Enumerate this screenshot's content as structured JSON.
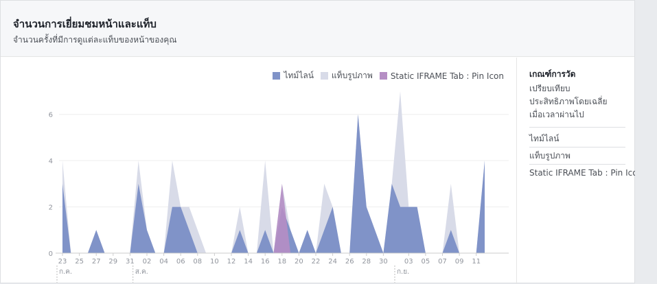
{
  "header": {
    "title": "จำนวนการเยี่ยมชมหน้าและแท็บ",
    "subtitle": "จำนวนครั้งที่มีการดูแต่ละแท็บของหน้าของคุณ"
  },
  "legend": [
    {
      "label": "ไทม์ไลน์",
      "color": "#8093c8"
    },
    {
      "label": "แท็บรูปภาพ",
      "color": "#d8dbe8"
    },
    {
      "label": "Static IFRAME Tab : Pin Icon",
      "color": "#b58ec4"
    }
  ],
  "side": {
    "title": "เกณฑ์การวัด",
    "desc_lines": [
      "เปรียบเทียบ",
      "ประสิทธิภาพโดยเฉลี่ย",
      "เมื่อเวลาผ่านไป"
    ],
    "options": [
      "ไทม์ไลน์",
      "แท็บรูปภาพ",
      "Static IFRAME Tab : Pin Icon"
    ]
  },
  "chart_data": {
    "type": "area",
    "ylim": [
      0,
      7
    ],
    "yticks": [
      0,
      2,
      4,
      6
    ],
    "x": [
      "23",
      "24",
      "25",
      "26",
      "27",
      "28",
      "29",
      "30",
      "31",
      "01",
      "02",
      "03",
      "04",
      "05",
      "06",
      "07",
      "08",
      "09",
      "10",
      "11",
      "12",
      "13",
      "14",
      "15",
      "16",
      "17",
      "18",
      "19",
      "20",
      "21",
      "22",
      "23b",
      "24b",
      "25b",
      "26b",
      "27b",
      "28b",
      "29b",
      "30b",
      "31b",
      "01b",
      "02b",
      "03b",
      "04b",
      "05b",
      "06b",
      "07b",
      "08b",
      "09b",
      "10b",
      "11b"
    ],
    "xtick_labels": [
      "23",
      "25",
      "27",
      "29",
      "31",
      "02",
      "04",
      "06",
      "08",
      "10",
      "12",
      "14",
      "16",
      "18",
      "20",
      "22",
      "24",
      "26",
      "28",
      "30",
      "03",
      "05",
      "07",
      "09",
      "11"
    ],
    "xtick_index": [
      0,
      2,
      4,
      6,
      8,
      10,
      12,
      14,
      16,
      18,
      20,
      22,
      24,
      26,
      28,
      30,
      32,
      34,
      36,
      38,
      41,
      43,
      45,
      47,
      49
    ],
    "month_labels": [
      {
        "label": "ก.ค.",
        "index": 0
      },
      {
        "label": "ส.ค.",
        "index": 9
      },
      {
        "label": "ก.ย.",
        "index": 40
      }
    ],
    "series": [
      {
        "name": "แท็บรูปภาพ",
        "color": "#d8dbe8",
        "values": [
          4,
          0,
          0,
          0,
          1,
          0,
          0,
          0,
          0,
          4,
          1,
          0,
          0,
          4,
          2,
          2,
          1,
          0,
          0,
          0,
          0,
          2,
          0,
          0,
          4,
          0,
          3,
          1,
          0,
          1,
          0,
          3,
          2,
          0,
          0,
          6,
          2,
          1,
          0,
          3,
          7,
          2,
          2,
          0,
          0,
          0,
          3,
          0,
          0,
          0,
          4
        ]
      },
      {
        "name": "ไทม์ไลน์",
        "color": "#8093c8",
        "values": [
          3,
          0,
          0,
          0,
          1,
          0,
          0,
          0,
          0,
          3,
          1,
          0,
          0,
          2,
          2,
          1,
          0,
          0,
          0,
          0,
          0,
          1,
          0,
          0,
          1,
          0,
          2,
          1,
          0,
          1,
          0,
          1,
          2,
          0,
          0,
          6,
          2,
          1,
          0,
          3,
          2,
          2,
          2,
          0,
          0,
          0,
          1,
          0,
          0,
          0,
          4
        ]
      },
      {
        "name": "Static IFRAME Tab : Pin Icon",
        "color": "#b58ec4",
        "values": [
          0,
          0,
          0,
          0,
          0,
          0,
          0,
          0,
          0,
          0,
          0,
          0,
          0,
          0,
          0,
          0,
          0,
          0,
          0,
          0,
          0,
          0,
          0,
          0,
          0,
          0,
          3,
          0,
          0,
          0,
          0,
          0,
          0,
          0,
          0,
          0,
          0,
          0,
          0,
          0,
          0,
          0,
          0,
          0,
          0,
          0,
          0,
          0,
          0,
          0,
          0
        ]
      }
    ]
  }
}
